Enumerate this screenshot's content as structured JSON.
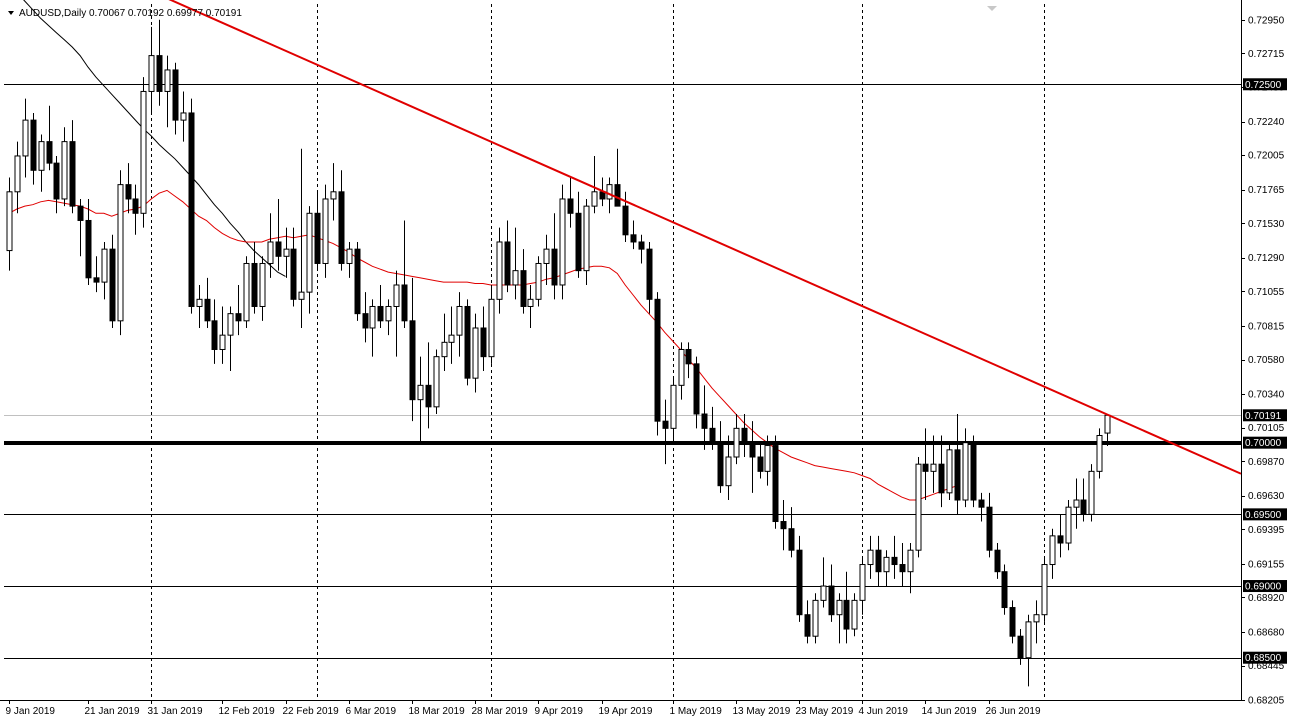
{
  "chart_title": {
    "symbol_label": "AUDUSD,Daily",
    "ohlc_text": "0.70067 0.70192 0.69977 0.70191"
  },
  "colors": {
    "background": "#ffffff",
    "candle_up": "#ffffff",
    "candle_down": "#000000",
    "candle_outline": "#000000",
    "trendline": "#e00000",
    "ma_fast": "#e00000",
    "ma_slow": "#000000",
    "level_line": "#000000",
    "label_bg": "#000000"
  },
  "chart_data": {
    "type": "candlestick",
    "y_range": [
      0.68205,
      0.7306
    ],
    "y_ticks": [
      "0.72950",
      "0.72715",
      "0.72480",
      "0.72240",
      "0.72005",
      "0.71765",
      "0.71530",
      "0.71290",
      "0.71055",
      "0.70815",
      "0.70580",
      "0.70340",
      "0.70105",
      "0.69870",
      "0.69630",
      "0.69395",
      "0.69155",
      "0.68920",
      "0.68680",
      "0.68445",
      "0.68205"
    ],
    "x_labels": [
      {
        "i": 0,
        "label": "9 Jan 2019"
      },
      {
        "i": 10,
        "label": "21 Jan 2019"
      },
      {
        "i": 18,
        "label": "31 Jan 2019"
      },
      {
        "i": 27,
        "label": "12 Feb 2019"
      },
      {
        "i": 35,
        "label": "22 Feb 2019"
      },
      {
        "i": 43,
        "label": "6 Mar 2019"
      },
      {
        "i": 51,
        "label": "18 Mar 2019"
      },
      {
        "i": 59,
        "label": "28 Mar 2019"
      },
      {
        "i": 67,
        "label": "9 Apr 2019"
      },
      {
        "i": 75,
        "label": "19 Apr 2019"
      },
      {
        "i": 84,
        "label": "1 May 2019"
      },
      {
        "i": 92,
        "label": "13 May 2019"
      },
      {
        "i": 100,
        "label": "23 May 2019"
      },
      {
        "i": 108,
        "label": "4 Jun 2019"
      },
      {
        "i": 116,
        "label": "14 Jun 2019"
      },
      {
        "i": 124,
        "label": "26 Jun 2019"
      }
    ],
    "vgrid_indices": [
      18,
      39,
      61,
      84,
      108,
      131
    ],
    "horizontal_levels": [
      {
        "price": 0.725,
        "label": "0.72500",
        "width": 1
      },
      {
        "price": 0.7,
        "label": "0.70000",
        "width": 4
      },
      {
        "price": 0.695,
        "label": "0.69500",
        "width": 1
      },
      {
        "price": 0.69,
        "label": "0.69000",
        "width": 1
      },
      {
        "price": 0.685,
        "label": "0.68500",
        "width": 1
      }
    ],
    "current_price": {
      "price": 0.70191,
      "label": "0.70191"
    },
    "trendline": {
      "start": {
        "i": 20,
        "price": 0.731
      },
      "end": {
        "i": 161,
        "price": 0.6966
      }
    },
    "candles": [
      {
        "o": 0.7134,
        "h": 0.7185,
        "l": 0.712,
        "c": 0.7175
      },
      {
        "o": 0.7175,
        "h": 0.721,
        "l": 0.716,
        "c": 0.72
      },
      {
        "o": 0.72,
        "h": 0.724,
        "l": 0.7185,
        "c": 0.7225
      },
      {
        "o": 0.7225,
        "h": 0.723,
        "l": 0.718,
        "c": 0.719
      },
      {
        "o": 0.719,
        "h": 0.7215,
        "l": 0.7175,
        "c": 0.721
      },
      {
        "o": 0.721,
        "h": 0.7235,
        "l": 0.719,
        "c": 0.7195
      },
      {
        "o": 0.7195,
        "h": 0.72,
        "l": 0.716,
        "c": 0.717
      },
      {
        "o": 0.717,
        "h": 0.722,
        "l": 0.7165,
        "c": 0.721
      },
      {
        "o": 0.721,
        "h": 0.7225,
        "l": 0.716,
        "c": 0.7165
      },
      {
        "o": 0.7165,
        "h": 0.717,
        "l": 0.713,
        "c": 0.7155
      },
      {
        "o": 0.7155,
        "h": 0.717,
        "l": 0.711,
        "c": 0.7115
      },
      {
        "o": 0.7115,
        "h": 0.713,
        "l": 0.7105,
        "c": 0.7112
      },
      {
        "o": 0.7112,
        "h": 0.714,
        "l": 0.71,
        "c": 0.7135
      },
      {
        "o": 0.7135,
        "h": 0.7145,
        "l": 0.708,
        "c": 0.7085
      },
      {
        "o": 0.7085,
        "h": 0.719,
        "l": 0.7075,
        "c": 0.718
      },
      {
        "o": 0.718,
        "h": 0.7195,
        "l": 0.716,
        "c": 0.717
      },
      {
        "o": 0.717,
        "h": 0.718,
        "l": 0.7145,
        "c": 0.716
      },
      {
        "o": 0.716,
        "h": 0.7255,
        "l": 0.715,
        "c": 0.7245
      },
      {
        "o": 0.7245,
        "h": 0.729,
        "l": 0.723,
        "c": 0.727
      },
      {
        "o": 0.727,
        "h": 0.7295,
        "l": 0.7235,
        "c": 0.7245
      },
      {
        "o": 0.7245,
        "h": 0.727,
        "l": 0.722,
        "c": 0.726
      },
      {
        "o": 0.726,
        "h": 0.7265,
        "l": 0.7215,
        "c": 0.7225
      },
      {
        "o": 0.7225,
        "h": 0.7245,
        "l": 0.721,
        "c": 0.723
      },
      {
        "o": 0.723,
        "h": 0.724,
        "l": 0.709,
        "c": 0.7095
      },
      {
        "o": 0.7095,
        "h": 0.711,
        "l": 0.708,
        "c": 0.71
      },
      {
        "o": 0.71,
        "h": 0.7115,
        "l": 0.708,
        "c": 0.7085
      },
      {
        "o": 0.7085,
        "h": 0.71,
        "l": 0.7055,
        "c": 0.7065
      },
      {
        "o": 0.7065,
        "h": 0.7095,
        "l": 0.7055,
        "c": 0.7075
      },
      {
        "o": 0.7075,
        "h": 0.7095,
        "l": 0.705,
        "c": 0.709
      },
      {
        "o": 0.709,
        "h": 0.711,
        "l": 0.7075,
        "c": 0.7085
      },
      {
        "o": 0.7085,
        "h": 0.713,
        "l": 0.708,
        "c": 0.7125
      },
      {
        "o": 0.7125,
        "h": 0.714,
        "l": 0.709,
        "c": 0.7095
      },
      {
        "o": 0.7095,
        "h": 0.713,
        "l": 0.7085,
        "c": 0.7125
      },
      {
        "o": 0.7125,
        "h": 0.716,
        "l": 0.7115,
        "c": 0.714
      },
      {
        "o": 0.714,
        "h": 0.717,
        "l": 0.712,
        "c": 0.713
      },
      {
        "o": 0.713,
        "h": 0.715,
        "l": 0.7115,
        "c": 0.7135
      },
      {
        "o": 0.7135,
        "h": 0.715,
        "l": 0.7095,
        "c": 0.71
      },
      {
        "o": 0.71,
        "h": 0.7205,
        "l": 0.708,
        "c": 0.7105
      },
      {
        "o": 0.7105,
        "h": 0.7165,
        "l": 0.709,
        "c": 0.716
      },
      {
        "o": 0.716,
        "h": 0.7175,
        "l": 0.712,
        "c": 0.7125
      },
      {
        "o": 0.7125,
        "h": 0.718,
        "l": 0.7115,
        "c": 0.717
      },
      {
        "o": 0.717,
        "h": 0.7195,
        "l": 0.7155,
        "c": 0.7175
      },
      {
        "o": 0.7175,
        "h": 0.719,
        "l": 0.712,
        "c": 0.7125
      },
      {
        "o": 0.7125,
        "h": 0.714,
        "l": 0.7115,
        "c": 0.7135
      },
      {
        "o": 0.7135,
        "h": 0.714,
        "l": 0.7085,
        "c": 0.709
      },
      {
        "o": 0.709,
        "h": 0.7105,
        "l": 0.707,
        "c": 0.708
      },
      {
        "o": 0.708,
        "h": 0.71,
        "l": 0.706,
        "c": 0.7095
      },
      {
        "o": 0.7095,
        "h": 0.711,
        "l": 0.708,
        "c": 0.7085
      },
      {
        "o": 0.7085,
        "h": 0.71,
        "l": 0.7075,
        "c": 0.7095
      },
      {
        "o": 0.7095,
        "h": 0.712,
        "l": 0.706,
        "c": 0.711
      },
      {
        "o": 0.711,
        "h": 0.7155,
        "l": 0.708,
        "c": 0.7085
      },
      {
        "o": 0.7085,
        "h": 0.7115,
        "l": 0.7015,
        "c": 0.703
      },
      {
        "o": 0.703,
        "h": 0.706,
        "l": 0.7,
        "c": 0.704
      },
      {
        "o": 0.704,
        "h": 0.707,
        "l": 0.701,
        "c": 0.7025
      },
      {
        "o": 0.7025,
        "h": 0.7065,
        "l": 0.702,
        "c": 0.706
      },
      {
        "o": 0.706,
        "h": 0.709,
        "l": 0.705,
        "c": 0.707
      },
      {
        "o": 0.707,
        "h": 0.7095,
        "l": 0.7055,
        "c": 0.7075
      },
      {
        "o": 0.7075,
        "h": 0.7105,
        "l": 0.706,
        "c": 0.7095
      },
      {
        "o": 0.7095,
        "h": 0.71,
        "l": 0.704,
        "c": 0.7045
      },
      {
        "o": 0.7045,
        "h": 0.709,
        "l": 0.7035,
        "c": 0.708
      },
      {
        "o": 0.708,
        "h": 0.7095,
        "l": 0.705,
        "c": 0.706
      },
      {
        "o": 0.706,
        "h": 0.711,
        "l": 0.7055,
        "c": 0.71
      },
      {
        "o": 0.71,
        "h": 0.715,
        "l": 0.709,
        "c": 0.714
      },
      {
        "o": 0.714,
        "h": 0.7155,
        "l": 0.7105,
        "c": 0.711
      },
      {
        "o": 0.711,
        "h": 0.715,
        "l": 0.71,
        "c": 0.712
      },
      {
        "o": 0.712,
        "h": 0.7135,
        "l": 0.709,
        "c": 0.7095
      },
      {
        "o": 0.7095,
        "h": 0.711,
        "l": 0.708,
        "c": 0.71
      },
      {
        "o": 0.71,
        "h": 0.713,
        "l": 0.7095,
        "c": 0.7125
      },
      {
        "o": 0.7125,
        "h": 0.7145,
        "l": 0.711,
        "c": 0.7135
      },
      {
        "o": 0.7135,
        "h": 0.716,
        "l": 0.71,
        "c": 0.711
      },
      {
        "o": 0.711,
        "h": 0.718,
        "l": 0.71,
        "c": 0.717
      },
      {
        "o": 0.717,
        "h": 0.7185,
        "l": 0.715,
        "c": 0.716
      },
      {
        "o": 0.716,
        "h": 0.7175,
        "l": 0.7115,
        "c": 0.712
      },
      {
        "o": 0.712,
        "h": 0.717,
        "l": 0.711,
        "c": 0.7165
      },
      {
        "o": 0.7165,
        "h": 0.72,
        "l": 0.716,
        "c": 0.7175
      },
      {
        "o": 0.7175,
        "h": 0.7185,
        "l": 0.7165,
        "c": 0.717
      },
      {
        "o": 0.717,
        "h": 0.7185,
        "l": 0.716,
        "c": 0.718
      },
      {
        "o": 0.718,
        "h": 0.7205,
        "l": 0.7165,
        "c": 0.7165
      },
      {
        "o": 0.7165,
        "h": 0.7175,
        "l": 0.714,
        "c": 0.7145
      },
      {
        "o": 0.7145,
        "h": 0.7155,
        "l": 0.7135,
        "c": 0.714
      },
      {
        "o": 0.714,
        "h": 0.7145,
        "l": 0.7125,
        "c": 0.7135
      },
      {
        "o": 0.7135,
        "h": 0.714,
        "l": 0.709,
        "c": 0.71
      },
      {
        "o": 0.71,
        "h": 0.7105,
        "l": 0.7005,
        "c": 0.7015
      },
      {
        "o": 0.7015,
        "h": 0.703,
        "l": 0.6985,
        "c": 0.701
      },
      {
        "o": 0.701,
        "h": 0.7045,
        "l": 0.7,
        "c": 0.704
      },
      {
        "o": 0.704,
        "h": 0.707,
        "l": 0.703,
        "c": 0.7065
      },
      {
        "o": 0.7065,
        "h": 0.707,
        "l": 0.7045,
        "c": 0.7055
      },
      {
        "o": 0.7055,
        "h": 0.706,
        "l": 0.701,
        "c": 0.702
      },
      {
        "o": 0.702,
        "h": 0.704,
        "l": 0.6995,
        "c": 0.701
      },
      {
        "o": 0.701,
        "h": 0.7025,
        "l": 0.6995,
        "c": 0.7
      },
      {
        "o": 0.7,
        "h": 0.7015,
        "l": 0.6965,
        "c": 0.697
      },
      {
        "o": 0.697,
        "h": 0.7005,
        "l": 0.696,
        "c": 0.699
      },
      {
        "o": 0.699,
        "h": 0.702,
        "l": 0.6985,
        "c": 0.701
      },
      {
        "o": 0.701,
        "h": 0.702,
        "l": 0.699,
        "c": 0.7
      },
      {
        "o": 0.7,
        "h": 0.7015,
        "l": 0.6965,
        "c": 0.699
      },
      {
        "o": 0.699,
        "h": 0.7,
        "l": 0.6975,
        "c": 0.698
      },
      {
        "o": 0.698,
        "h": 0.7005,
        "l": 0.697,
        "c": 0.6998
      },
      {
        "o": 0.6998,
        "h": 0.7005,
        "l": 0.694,
        "c": 0.6945
      },
      {
        "o": 0.6945,
        "h": 0.696,
        "l": 0.6925,
        "c": 0.694
      },
      {
        "o": 0.694,
        "h": 0.6955,
        "l": 0.692,
        "c": 0.6925
      },
      {
        "o": 0.6925,
        "h": 0.6935,
        "l": 0.6875,
        "c": 0.688
      },
      {
        "o": 0.688,
        "h": 0.689,
        "l": 0.686,
        "c": 0.6865
      },
      {
        "o": 0.6865,
        "h": 0.6895,
        "l": 0.686,
        "c": 0.689
      },
      {
        "o": 0.689,
        "h": 0.692,
        "l": 0.6885,
        "c": 0.69
      },
      {
        "o": 0.69,
        "h": 0.6915,
        "l": 0.6875,
        "c": 0.688
      },
      {
        "o": 0.688,
        "h": 0.6895,
        "l": 0.686,
        "c": 0.689
      },
      {
        "o": 0.689,
        "h": 0.691,
        "l": 0.686,
        "c": 0.687
      },
      {
        "o": 0.687,
        "h": 0.6895,
        "l": 0.6865,
        "c": 0.689
      },
      {
        "o": 0.689,
        "h": 0.692,
        "l": 0.688,
        "c": 0.6915
      },
      {
        "o": 0.6915,
        "h": 0.6935,
        "l": 0.6905,
        "c": 0.6925
      },
      {
        "o": 0.6925,
        "h": 0.6935,
        "l": 0.69,
        "c": 0.691
      },
      {
        "o": 0.691,
        "h": 0.6925,
        "l": 0.69,
        "c": 0.692
      },
      {
        "o": 0.692,
        "h": 0.6935,
        "l": 0.6905,
        "c": 0.6915
      },
      {
        "o": 0.6915,
        "h": 0.693,
        "l": 0.69,
        "c": 0.691
      },
      {
        "o": 0.691,
        "h": 0.693,
        "l": 0.6895,
        "c": 0.6925
      },
      {
        "o": 0.6925,
        "h": 0.699,
        "l": 0.692,
        "c": 0.6985
      },
      {
        "o": 0.6985,
        "h": 0.701,
        "l": 0.696,
        "c": 0.698
      },
      {
        "o": 0.698,
        "h": 0.7005,
        "l": 0.6965,
        "c": 0.6985
      },
      {
        "o": 0.6985,
        "h": 0.7005,
        "l": 0.6955,
        "c": 0.6965
      },
      {
        "o": 0.6965,
        "h": 0.7,
        "l": 0.696,
        "c": 0.6995
      },
      {
        "o": 0.6995,
        "h": 0.702,
        "l": 0.695,
        "c": 0.696
      },
      {
        "o": 0.696,
        "h": 0.701,
        "l": 0.6955,
        "c": 0.7
      },
      {
        "o": 0.7,
        "h": 0.7005,
        "l": 0.6955,
        "c": 0.696
      },
      {
        "o": 0.696,
        "h": 0.6965,
        "l": 0.6945,
        "c": 0.6955
      },
      {
        "o": 0.6955,
        "h": 0.6965,
        "l": 0.692,
        "c": 0.6925
      },
      {
        "o": 0.6925,
        "h": 0.693,
        "l": 0.6905,
        "c": 0.691
      },
      {
        "o": 0.691,
        "h": 0.6915,
        "l": 0.688,
        "c": 0.6885
      },
      {
        "o": 0.6885,
        "h": 0.689,
        "l": 0.686,
        "c": 0.6865
      },
      {
        "o": 0.6865,
        "h": 0.687,
        "l": 0.6845,
        "c": 0.685
      },
      {
        "o": 0.685,
        "h": 0.688,
        "l": 0.683,
        "c": 0.6875
      },
      {
        "o": 0.6875,
        "h": 0.689,
        "l": 0.686,
        "c": 0.688
      },
      {
        "o": 0.688,
        "h": 0.692,
        "l": 0.6875,
        "c": 0.6915
      },
      {
        "o": 0.6915,
        "h": 0.694,
        "l": 0.6905,
        "c": 0.6935
      },
      {
        "o": 0.6935,
        "h": 0.695,
        "l": 0.692,
        "c": 0.693
      },
      {
        "o": 0.693,
        "h": 0.696,
        "l": 0.6925,
        "c": 0.6955
      },
      {
        "o": 0.6955,
        "h": 0.6975,
        "l": 0.694,
        "c": 0.696
      },
      {
        "o": 0.696,
        "h": 0.6975,
        "l": 0.6945,
        "c": 0.695
      },
      {
        "o": 0.695,
        "h": 0.6985,
        "l": 0.6945,
        "c": 0.698
      },
      {
        "o": 0.698,
        "h": 0.701,
        "l": 0.6975,
        "c": 0.7005
      },
      {
        "o": 0.70067,
        "h": 0.70192,
        "l": 0.69977,
        "c": 0.70191
      }
    ],
    "ma_fast": [
      0.716,
      0.7163,
      0.7165,
      0.7166,
      0.7168,
      0.7169,
      0.7168,
      0.7167,
      0.7166,
      0.7165,
      0.7163,
      0.716,
      0.716,
      0.7158,
      0.716,
      0.7162,
      0.7163,
      0.7165,
      0.717,
      0.7174,
      0.7176,
      0.7172,
      0.7168,
      0.7163,
      0.7158,
      0.7155,
      0.715,
      0.7146,
      0.7143,
      0.7141,
      0.714,
      0.714,
      0.714,
      0.7142,
      0.7143,
      0.7144,
      0.7143,
      0.7144,
      0.7145,
      0.7143,
      0.7141,
      0.7139,
      0.7136,
      0.7133,
      0.7129,
      0.7126,
      0.7123,
      0.7121,
      0.7119,
      0.7118,
      0.7117,
      0.7116,
      0.7115,
      0.7114,
      0.7113,
      0.7112,
      0.7112,
      0.7112,
      0.7112,
      0.7111,
      0.7111,
      0.711,
      0.711,
      0.711,
      0.711,
      0.711,
      0.7111,
      0.7112,
      0.7114,
      0.7115,
      0.7117,
      0.7119,
      0.7121,
      0.7122,
      0.7123,
      0.7123,
      0.7122,
      0.7118,
      0.711,
      0.7103,
      0.7096,
      0.709,
      0.7084,
      0.7077,
      0.7071,
      0.7065,
      0.7058,
      0.7052,
      0.7045,
      0.7038,
      0.7032,
      0.7026,
      0.702,
      0.7014,
      0.7009,
      0.7004,
      0.7,
      0.6996,
      0.6993,
      0.699,
      0.6988,
      0.6986,
      0.6984,
      0.6983,
      0.6982,
      0.6981,
      0.698,
      0.6979,
      0.6977,
      0.6975,
      0.6971,
      0.6968,
      0.6965,
      0.6962,
      0.696,
      0.696,
      0.6962,
      0.6964,
      0.6966,
      0.6968,
      0.697
    ],
    "ma_slow": [
      0.732,
      0.7314,
      0.7308,
      0.7302,
      0.7296,
      0.7291,
      0.7286,
      0.7281,
      0.7276,
      0.727,
      0.7262,
      0.7255,
      0.7249,
      0.7243,
      0.7237,
      0.7231,
      0.7225,
      0.7219,
      0.7214,
      0.7208,
      0.7203,
      0.7198,
      0.7192,
      0.7186,
      0.718,
      0.7173,
      0.7166,
      0.716,
      0.7153,
      0.7147,
      0.714,
      0.7134,
      0.7129,
      0.7124,
      0.7119,
      0.7116
    ]
  }
}
